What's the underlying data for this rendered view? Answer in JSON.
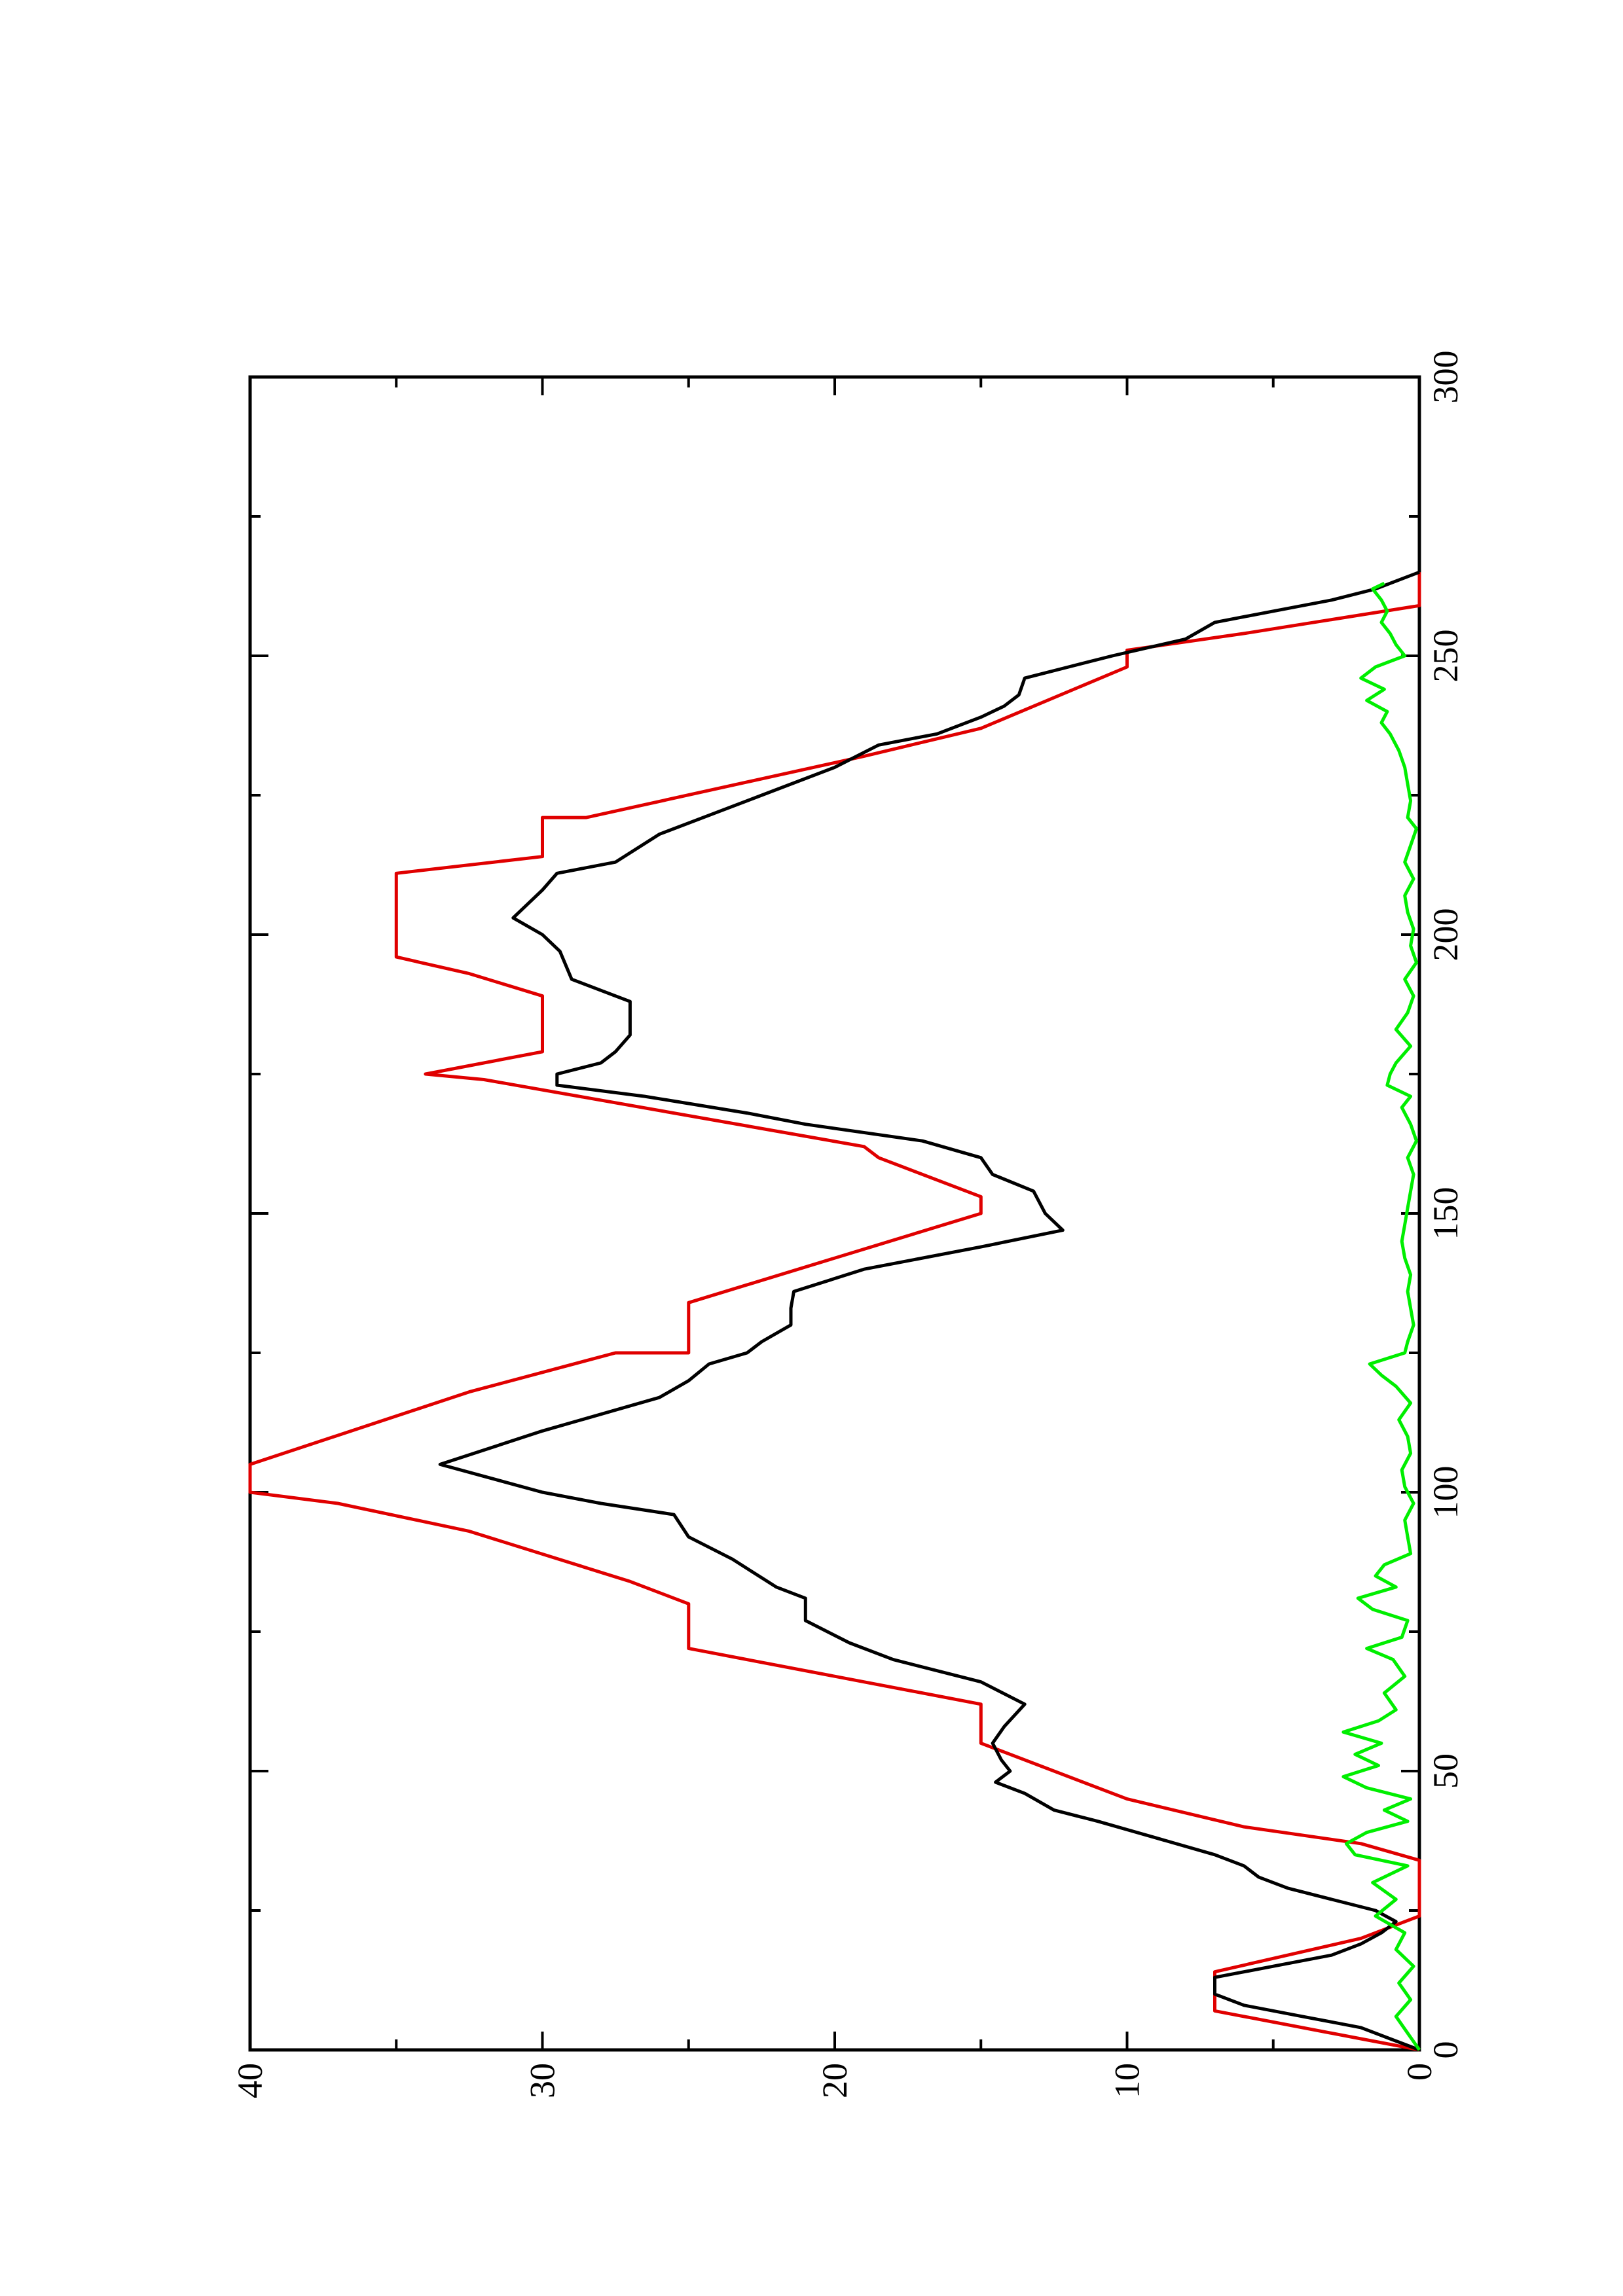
{
  "chart_data": {
    "type": "line",
    "title": "",
    "xlabel": "",
    "ylabel": "",
    "xlim": [
      0,
      300
    ],
    "ylim": [
      0,
      40
    ],
    "x_ticks": [
      "0",
      "50",
      "100",
      "150",
      "200",
      "250",
      "300"
    ],
    "y_ticks": [
      "0",
      "10",
      "20",
      "30",
      "40"
    ],
    "grid": false,
    "legend": "none",
    "orientation": "rotated 90 degrees counter-clockwise on the page (x axis runs bottom-to-top, y axis runs right-to-left)",
    "series": [
      {
        "color": "#e00000",
        "points": [
          [
            0,
            0
          ],
          [
            2,
            2
          ],
          [
            7,
            7
          ],
          [
            14,
            7
          ],
          [
            20,
            2
          ],
          [
            24,
            0
          ],
          [
            34,
            0
          ],
          [
            37,
            2
          ],
          [
            40,
            6
          ],
          [
            45,
            10
          ],
          [
            55,
            15
          ],
          [
            62,
            15
          ],
          [
            72,
            25
          ],
          [
            80,
            25
          ],
          [
            84,
            27
          ],
          [
            93,
            32.5
          ],
          [
            98,
            37
          ],
          [
            100,
            40
          ],
          [
            105,
            40
          ],
          [
            118,
            32.5
          ],
          [
            125,
            27.5
          ],
          [
            125,
            25
          ],
          [
            134,
            25
          ],
          [
            150,
            15
          ],
          [
            153,
            15
          ],
          [
            160,
            18.5
          ],
          [
            162,
            19
          ],
          [
            174,
            32
          ],
          [
            175,
            34
          ],
          [
            179,
            30
          ],
          [
            189,
            30
          ],
          [
            193,
            32.5
          ],
          [
            196,
            35
          ],
          [
            211,
            35
          ],
          [
            214,
            30
          ],
          [
            221,
            30
          ],
          [
            221,
            28.5
          ],
          [
            232,
            19
          ],
          [
            237,
            15
          ],
          [
            248,
            10
          ],
          [
            251,
            10
          ],
          [
            254,
            6
          ],
          [
            259,
            0
          ],
          [
            265,
            0
          ]
        ]
      },
      {
        "color": "#000000",
        "points": [
          [
            0,
            0
          ],
          [
            2,
            1
          ],
          [
            4,
            2
          ],
          [
            6,
            4
          ],
          [
            8,
            6
          ],
          [
            10,
            7
          ],
          [
            13,
            7
          ],
          [
            15,
            5
          ],
          [
            17,
            3
          ],
          [
            19,
            2
          ],
          [
            21,
            1.3
          ],
          [
            23,
            0.8
          ],
          [
            25,
            1.5
          ],
          [
            27,
            3
          ],
          [
            29,
            4.5
          ],
          [
            31,
            5.5
          ],
          [
            33,
            6
          ],
          [
            35,
            7
          ],
          [
            38,
            9
          ],
          [
            41,
            11
          ],
          [
            43,
            12.5
          ],
          [
            46,
            13.5
          ],
          [
            48,
            14.5
          ],
          [
            50,
            14
          ],
          [
            52,
            14.3
          ],
          [
            55,
            14.6
          ],
          [
            58,
            14.2
          ],
          [
            62,
            13.5
          ],
          [
            66,
            15
          ],
          [
            70,
            18
          ],
          [
            73,
            19.5
          ],
          [
            77,
            21
          ],
          [
            81,
            21
          ],
          [
            83,
            22
          ],
          [
            88,
            23.5
          ],
          [
            92,
            25
          ],
          [
            96,
            25.5
          ],
          [
            98,
            28
          ],
          [
            100,
            30
          ],
          [
            105,
            33.5
          ],
          [
            111,
            30
          ],
          [
            117,
            26
          ],
          [
            120,
            25
          ],
          [
            123,
            24.3
          ],
          [
            125,
            23
          ],
          [
            127,
            22.5
          ],
          [
            130,
            21.5
          ],
          [
            133,
            21.5
          ],
          [
            136,
            21.4
          ],
          [
            140,
            19
          ],
          [
            144,
            15
          ],
          [
            147,
            12.2
          ],
          [
            150,
            12.8
          ],
          [
            154,
            13.2
          ],
          [
            157,
            14.6
          ],
          [
            160,
            15
          ],
          [
            163,
            17
          ],
          [
            166,
            21
          ],
          [
            168,
            23
          ],
          [
            171,
            26.5
          ],
          [
            173,
            29.5
          ],
          [
            175,
            29.5
          ],
          [
            177,
            28
          ],
          [
            179,
            27.5
          ],
          [
            182,
            27
          ],
          [
            188,
            27
          ],
          [
            190,
            28
          ],
          [
            192,
            29
          ],
          [
            197,
            29.4
          ],
          [
            200,
            30
          ],
          [
            203,
            31
          ],
          [
            208,
            30
          ],
          [
            211,
            29.5
          ],
          [
            213,
            27.5
          ],
          [
            218,
            26
          ],
          [
            222,
            24
          ],
          [
            226,
            22
          ],
          [
            230,
            20
          ],
          [
            234,
            18.5
          ],
          [
            236,
            16.5
          ],
          [
            239,
            15
          ],
          [
            241,
            14.2
          ],
          [
            243,
            13.7
          ],
          [
            246,
            13.5
          ],
          [
            248,
            12
          ],
          [
            250,
            10.5
          ],
          [
            253,
            8
          ],
          [
            256,
            7
          ],
          [
            258,
            5
          ],
          [
            260,
            3
          ],
          [
            262,
            1.5
          ],
          [
            264,
            0.5
          ],
          [
            265,
            0
          ]
        ]
      },
      {
        "color": "#00ee00",
        "points": [
          [
            0,
            0
          ],
          [
            3,
            0.4
          ],
          [
            6,
            0.8
          ],
          [
            9,
            0.3
          ],
          [
            12,
            0.7
          ],
          [
            15,
            0.2
          ],
          [
            18,
            0.8
          ],
          [
            21,
            0.5
          ],
          [
            24,
            1.5
          ],
          [
            27,
            0.8
          ],
          [
            30,
            1.6
          ],
          [
            33,
            0.4
          ],
          [
            35,
            2.2
          ],
          [
            37,
            2.5
          ],
          [
            39,
            1.8
          ],
          [
            41,
            0.4
          ],
          [
            43,
            1.2
          ],
          [
            45,
            0.3
          ],
          [
            47,
            1.8
          ],
          [
            49,
            2.6
          ],
          [
            51,
            1.4
          ],
          [
            53,
            2.2
          ],
          [
            55,
            1.3
          ],
          [
            57,
            2.6
          ],
          [
            59,
            1.4
          ],
          [
            61,
            0.8
          ],
          [
            64,
            1.2
          ],
          [
            67,
            0.5
          ],
          [
            70,
            0.9
          ],
          [
            72,
            1.8
          ],
          [
            74,
            0.6
          ],
          [
            77,
            0.4
          ],
          [
            79,
            1.6
          ],
          [
            81,
            2.1
          ],
          [
            83,
            0.8
          ],
          [
            85,
            1.5
          ],
          [
            87,
            1.2
          ],
          [
            89,
            0.3
          ],
          [
            92,
            0.4
          ],
          [
            95,
            0.5
          ],
          [
            98,
            0.2
          ],
          [
            101,
            0.5
          ],
          [
            104,
            0.6
          ],
          [
            107,
            0.3
          ],
          [
            110,
            0.4
          ],
          [
            113,
            0.7
          ],
          [
            116,
            0.3
          ],
          [
            119,
            0.8
          ],
          [
            121,
            1.3
          ],
          [
            123,
            1.7
          ],
          [
            125,
            0.5
          ],
          [
            127,
            0.4
          ],
          [
            130,
            0.2
          ],
          [
            133,
            0.3
          ],
          [
            136,
            0.4
          ],
          [
            139,
            0.3
          ],
          [
            142,
            0.5
          ],
          [
            145,
            0.6
          ],
          [
            148,
            0.5
          ],
          [
            151,
            0.4
          ],
          [
            154,
            0.3
          ],
          [
            157,
            0.2
          ],
          [
            160,
            0.4
          ],
          [
            163,
            0.1
          ],
          [
            166,
            0.3
          ],
          [
            169,
            0.6
          ],
          [
            171,
            0.3
          ],
          [
            173,
            1.1
          ],
          [
            175,
            1.0
          ],
          [
            177,
            0.8
          ],
          [
            180,
            0.3
          ],
          [
            183,
            0.8
          ],
          [
            186,
            0.4
          ],
          [
            189,
            0.2
          ],
          [
            192,
            0.5
          ],
          [
            195,
            0.1
          ],
          [
            198,
            0.3
          ],
          [
            201,
            0.2
          ],
          [
            204,
            0.4
          ],
          [
            207,
            0.5
          ],
          [
            210,
            0.2
          ],
          [
            213,
            0.5
          ],
          [
            216,
            0.3
          ],
          [
            219,
            0.1
          ],
          [
            221,
            0.4
          ],
          [
            224,
            0.3
          ],
          [
            227,
            0.4
          ],
          [
            230,
            0.5
          ],
          [
            233,
            0.7
          ],
          [
            236,
            1.0
          ],
          [
            238,
            1.3
          ],
          [
            240,
            1.1
          ],
          [
            242,
            1.8
          ],
          [
            244,
            1.2
          ],
          [
            246,
            2.0
          ],
          [
            248,
            1.5
          ],
          [
            250,
            0.5
          ],
          [
            252,
            0.8
          ],
          [
            254,
            1.0
          ],
          [
            256,
            1.3
          ],
          [
            258,
            1.1
          ],
          [
            260,
            1.3
          ],
          [
            262,
            1.6
          ],
          [
            263,
            1.2
          ]
        ]
      }
    ]
  }
}
